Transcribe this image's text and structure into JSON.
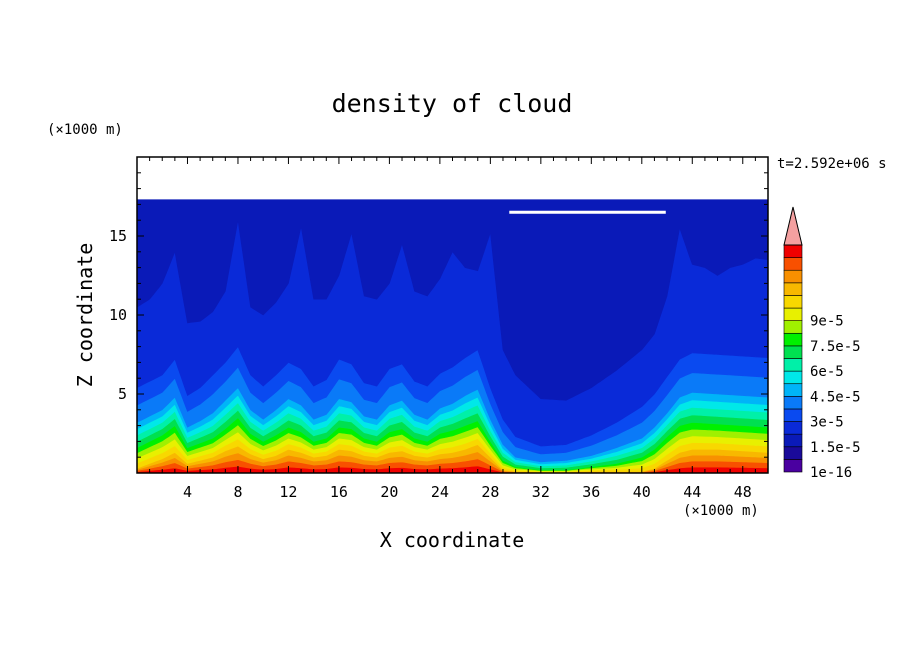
{
  "chart_data": {
    "type": "contour",
    "title": "density of cloud",
    "xlabel": "X coordinate",
    "ylabel": "Z coordinate",
    "x_unit": "(×1000 m)",
    "y_unit": "(×1000 m)",
    "time_label": "t=2.592e+06 s",
    "xlim": [
      0,
      50
    ],
    "ylim": [
      0,
      20
    ],
    "x_ticks": [
      4,
      8,
      12,
      16,
      20,
      24,
      28,
      32,
      36,
      40,
      44,
      48
    ],
    "y_ticks": [
      5,
      10,
      15
    ],
    "domain_top": 17.3,
    "levels": [
      1e-16,
      7.5e-06,
      1.5e-05,
      2.25e-05,
      3e-05,
      3.75e-05,
      4.5e-05,
      5.25e-05,
      6e-05,
      6.75e-05,
      7.5e-05,
      8.25e-05,
      9e-05,
      9.75e-05
    ],
    "colorbar_labels": [
      "1e-16",
      "1.5e-5",
      "3e-5",
      "4.5e-5",
      "6e-5",
      "7.5e-5",
      "9e-5"
    ],
    "colors": [
      "#4a00a0",
      "#1a0a9a",
      "#0a1ab8",
      "#0a2ad8",
      "#0a4af0",
      "#0a7af8",
      "#00b4f8",
      "#00e8e8",
      "#00f0a8",
      "#00e050",
      "#00f000",
      "#a0f000",
      "#e8f000",
      "#f8d800",
      "#f8b800",
      "#f89000",
      "#f85000",
      "#f00000"
    ],
    "overflow_color": "#f4a0a0",
    "contour_interfaces_z": [
      [
        [
          0,
          0.3
        ],
        [
          2,
          0.9
        ],
        [
          3,
          1.3
        ],
        [
          4,
          0.6
        ],
        [
          5,
          0.8
        ],
        [
          6,
          1.0
        ],
        [
          7,
          1.4
        ],
        [
          8,
          1.7
        ],
        [
          9,
          1.2
        ],
        [
          10,
          0.9
        ],
        [
          11,
          1.1
        ],
        [
          12,
          1.5
        ],
        [
          13,
          1.3
        ],
        [
          14,
          1.0
        ],
        [
          15,
          1.1
        ],
        [
          16,
          1.5
        ],
        [
          17,
          1.4
        ],
        [
          18,
          1.1
        ],
        [
          19,
          1.0
        ],
        [
          20,
          1.3
        ],
        [
          21,
          1.4
        ],
        [
          22,
          1.1
        ],
        [
          23,
          1.0
        ],
        [
          24,
          1.2
        ],
        [
          25,
          1.3
        ],
        [
          26,
          1.5
        ],
        [
          27,
          1.8
        ],
        [
          28,
          1.0
        ],
        [
          29,
          0.2
        ],
        [
          30,
          0.1
        ],
        [
          33,
          0.05
        ],
        [
          36,
          0.1
        ],
        [
          40,
          0.1
        ],
        [
          41,
          0.3
        ],
        [
          42,
          0.8
        ],
        [
          43,
          1.3
        ],
        [
          44,
          1.5
        ],
        [
          46,
          1.5
        ],
        [
          48,
          1.4
        ],
        [
          50,
          1.3
        ]
      ],
      [
        [
          0,
          1.6
        ],
        [
          2,
          2.4
        ],
        [
          3,
          3.0
        ],
        [
          4,
          1.6
        ],
        [
          5,
          1.9
        ],
        [
          6,
          2.2
        ],
        [
          7,
          2.8
        ],
        [
          8,
          3.5
        ],
        [
          9,
          2.5
        ],
        [
          10,
          2.0
        ],
        [
          11,
          2.4
        ],
        [
          12,
          2.9
        ],
        [
          13,
          2.6
        ],
        [
          14,
          2.0
        ],
        [
          15,
          2.2
        ],
        [
          16,
          2.9
        ],
        [
          17,
          2.8
        ],
        [
          18,
          2.2
        ],
        [
          19,
          2.0
        ],
        [
          20,
          2.6
        ],
        [
          21,
          2.8
        ],
        [
          22,
          2.2
        ],
        [
          23,
          2.0
        ],
        [
          24,
          2.5
        ],
        [
          25,
          2.7
        ],
        [
          26,
          3.0
        ],
        [
          27,
          3.3
        ],
        [
          28,
          2.0
        ],
        [
          29,
          0.8
        ],
        [
          30,
          0.4
        ],
        [
          32,
          0.2
        ],
        [
          34,
          0.2
        ],
        [
          36,
          0.4
        ],
        [
          38,
          0.6
        ],
        [
          40,
          1.0
        ],
        [
          41,
          1.5
        ],
        [
          42,
          2.3
        ],
        [
          43,
          3.0
        ],
        [
          44,
          3.2
        ],
        [
          46,
          3.1
        ],
        [
          48,
          3.0
        ],
        [
          50,
          2.9
        ]
      ],
      [
        [
          0,
          3.2
        ],
        [
          2,
          4.0
        ],
        [
          3,
          4.8
        ],
        [
          4,
          2.9
        ],
        [
          5,
          3.3
        ],
        [
          6,
          3.8
        ],
        [
          7,
          4.6
        ],
        [
          8,
          5.4
        ],
        [
          9,
          4.0
        ],
        [
          10,
          3.4
        ],
        [
          11,
          4.0
        ],
        [
          12,
          4.7
        ],
        [
          13,
          4.3
        ],
        [
          14,
          3.4
        ],
        [
          15,
          3.7
        ],
        [
          16,
          4.7
        ],
        [
          17,
          4.5
        ],
        [
          18,
          3.6
        ],
        [
          19,
          3.4
        ],
        [
          20,
          4.3
        ],
        [
          21,
          4.6
        ],
        [
          22,
          3.7
        ],
        [
          23,
          3.4
        ],
        [
          24,
          4.1
        ],
        [
          25,
          4.4
        ],
        [
          26,
          4.9
        ],
        [
          27,
          5.3
        ],
        [
          28,
          3.4
        ],
        [
          29,
          1.8
        ],
        [
          30,
          1.0
        ],
        [
          32,
          0.7
        ],
        [
          34,
          0.8
        ],
        [
          36,
          1.1
        ],
        [
          38,
          1.6
        ],
        [
          40,
          2.2
        ],
        [
          41,
          2.9
        ],
        [
          42,
          3.8
        ],
        [
          43,
          4.8
        ],
        [
          44,
          5.1
        ],
        [
          46,
          5.0
        ],
        [
          48,
          4.9
        ],
        [
          50,
          4.8
        ]
      ],
      [
        [
          0,
          5.4
        ],
        [
          2,
          6.2
        ],
        [
          3,
          7.2
        ],
        [
          4,
          4.9
        ],
        [
          5,
          5.4
        ],
        [
          6,
          6.2
        ],
        [
          7,
          7.0
        ],
        [
          8,
          8.0
        ],
        [
          9,
          6.2
        ],
        [
          10,
          5.5
        ],
        [
          11,
          6.2
        ],
        [
          12,
          7.0
        ],
        [
          13,
          6.6
        ],
        [
          14,
          5.5
        ],
        [
          15,
          5.9
        ],
        [
          16,
          7.2
        ],
        [
          17,
          6.9
        ],
        [
          18,
          5.7
        ],
        [
          19,
          5.5
        ],
        [
          20,
          6.6
        ],
        [
          21,
          6.9
        ],
        [
          22,
          5.8
        ],
        [
          23,
          5.5
        ],
        [
          24,
          6.3
        ],
        [
          25,
          6.7
        ],
        [
          26,
          7.3
        ],
        [
          27,
          7.8
        ],
        [
          28,
          5.4
        ],
        [
          29,
          3.4
        ],
        [
          30,
          2.3
        ],
        [
          32,
          1.7
        ],
        [
          34,
          1.8
        ],
        [
          36,
          2.4
        ],
        [
          38,
          3.2
        ],
        [
          40,
          4.2
        ],
        [
          41,
          5.0
        ],
        [
          42,
          6.1
        ],
        [
          43,
          7.2
        ],
        [
          44,
          7.6
        ],
        [
          46,
          7.5
        ],
        [
          48,
          7.4
        ],
        [
          50,
          7.3
        ]
      ],
      [
        [
          0,
          10.5
        ],
        [
          1,
          11.0
        ],
        [
          2,
          12.0
        ],
        [
          3,
          14.0
        ],
        [
          4,
          9.5
        ],
        [
          5,
          9.6
        ],
        [
          6,
          10.2
        ],
        [
          7,
          11.5
        ],
        [
          8,
          16.0
        ],
        [
          9,
          10.5
        ],
        [
          10,
          10.0
        ],
        [
          11,
          10.8
        ],
        [
          12,
          12.0
        ],
        [
          13,
          15.6
        ],
        [
          14,
          11.0
        ],
        [
          15,
          11.0
        ],
        [
          16,
          12.5
        ],
        [
          17,
          15.2
        ],
        [
          18,
          11.2
        ],
        [
          19,
          11.0
        ],
        [
          20,
          12.0
        ],
        [
          21,
          14.5
        ],
        [
          22,
          11.5
        ],
        [
          23,
          11.2
        ],
        [
          24,
          12.3
        ],
        [
          25,
          14.0
        ],
        [
          26,
          13.0
        ],
        [
          27,
          12.8
        ],
        [
          28,
          15.2
        ],
        [
          29,
          7.8
        ],
        [
          30,
          6.2
        ],
        [
          32,
          4.7
        ],
        [
          34,
          4.6
        ],
        [
          36,
          5.4
        ],
        [
          38,
          6.5
        ],
        [
          40,
          7.8
        ],
        [
          41,
          8.8
        ],
        [
          42,
          11.2
        ],
        [
          43,
          15.5
        ],
        [
          44,
          13.2
        ],
        [
          45,
          13.0
        ],
        [
          46,
          12.5
        ],
        [
          47,
          13.0
        ],
        [
          48,
          13.2
        ],
        [
          49,
          13.6
        ],
        [
          50,
          13.5
        ]
      ]
    ],
    "white_line": {
      "x_start": 29.5,
      "x_end": 41.9,
      "z": 16.5
    }
  }
}
